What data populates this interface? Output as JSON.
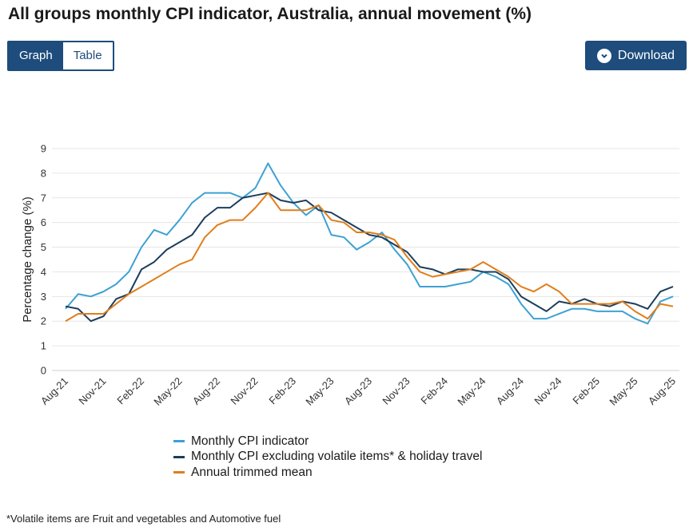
{
  "title": "All groups monthly CPI indicator, Australia, annual movement (%)",
  "tabs": [
    {
      "label": "Graph",
      "active": true
    },
    {
      "label": "Table",
      "active": false
    }
  ],
  "download": {
    "label": "Download",
    "icon": "chevron-down-icon"
  },
  "footnote": "*Volatile items are Fruit and vegetables and Automotive fuel",
  "chart_data": {
    "type": "line",
    "title": "",
    "xlabel": "",
    "ylabel": "Percentage change (%)",
    "ylim": [
      0,
      9
    ],
    "yticks": [
      0,
      1,
      2,
      3,
      4,
      5,
      6,
      7,
      8,
      9
    ],
    "grid": true,
    "months": [
      "Aug-21",
      "Sep-21",
      "Oct-21",
      "Nov-21",
      "Dec-21",
      "Jan-22",
      "Feb-22",
      "Mar-22",
      "Apr-22",
      "May-22",
      "Jun-22",
      "Jul-22",
      "Aug-22",
      "Sep-22",
      "Oct-22",
      "Nov-22",
      "Dec-22",
      "Jan-23",
      "Feb-23",
      "Mar-23",
      "Apr-23",
      "May-23",
      "Jun-23",
      "Jul-23",
      "Aug-23",
      "Sep-23",
      "Oct-23",
      "Nov-23",
      "Dec-23",
      "Jan-24",
      "Feb-24",
      "Mar-24",
      "Apr-24",
      "May-24",
      "Jun-24",
      "Jul-24",
      "Aug-24",
      "Sep-24",
      "Oct-24",
      "Nov-24",
      "Dec-24",
      "Jan-25",
      "Feb-25",
      "Mar-25",
      "Apr-25",
      "May-25",
      "Jun-25",
      "Jul-25",
      "Aug-25"
    ],
    "tick_labels": [
      "Aug-21",
      "Nov-21",
      "Feb-22",
      "May-22",
      "Aug-22",
      "Nov-22",
      "Feb-23",
      "May-23",
      "Aug-23",
      "Nov-23",
      "Feb-24",
      "May-24",
      "Aug-24",
      "Nov-24",
      "Feb-25",
      "May-25",
      "Aug-25"
    ],
    "series": [
      {
        "name": "Monthly CPI indicator",
        "color": "#3da1d3",
        "values": [
          2.5,
          3.1,
          3.0,
          3.2,
          3.5,
          4.0,
          5.0,
          5.7,
          5.5,
          6.1,
          6.8,
          7.2,
          7.2,
          7.2,
          7.0,
          7.4,
          8.4,
          7.5,
          6.8,
          6.3,
          6.7,
          5.5,
          5.4,
          4.9,
          5.2,
          5.6,
          4.9,
          4.3,
          3.4,
          3.4,
          3.4,
          3.5,
          3.6,
          4.0,
          3.8,
          3.5,
          2.7,
          2.1,
          2.1,
          2.3,
          2.5,
          2.5,
          2.4,
          2.4,
          2.4,
          2.1,
          1.9,
          2.8,
          3.0
        ]
      },
      {
        "name": "Monthly CPI excluding volatile items* & holiday travel",
        "color": "#1b3e5c",
        "values": [
          2.6,
          2.5,
          2.0,
          2.2,
          2.9,
          3.1,
          4.1,
          4.4,
          4.9,
          5.2,
          5.5,
          6.2,
          6.6,
          6.6,
          7.0,
          7.1,
          7.2,
          6.9,
          6.8,
          6.9,
          6.5,
          6.4,
          6.1,
          5.8,
          5.5,
          5.4,
          5.1,
          4.8,
          4.2,
          4.1,
          3.9,
          4.1,
          4.1,
          4.0,
          4.0,
          3.7,
          3.0,
          2.7,
          2.4,
          2.8,
          2.7,
          2.9,
          2.7,
          2.6,
          2.8,
          2.7,
          2.5,
          3.2,
          3.4
        ]
      },
      {
        "name": "Annual trimmed mean",
        "color": "#e07e1b",
        "values": [
          2.0,
          2.3,
          2.3,
          2.3,
          2.7,
          3.1,
          3.4,
          3.7,
          4.0,
          4.3,
          4.5,
          5.4,
          5.9,
          6.1,
          6.1,
          6.6,
          7.2,
          6.5,
          6.5,
          6.5,
          6.7,
          6.1,
          6.0,
          5.6,
          5.6,
          5.5,
          5.3,
          4.6,
          4.0,
          3.8,
          3.9,
          4.0,
          4.1,
          4.4,
          4.1,
          3.8,
          3.4,
          3.2,
          3.5,
          3.2,
          2.7,
          2.7,
          2.7,
          2.7,
          2.8,
          2.4,
          2.1,
          2.7,
          2.6
        ]
      }
    ]
  }
}
